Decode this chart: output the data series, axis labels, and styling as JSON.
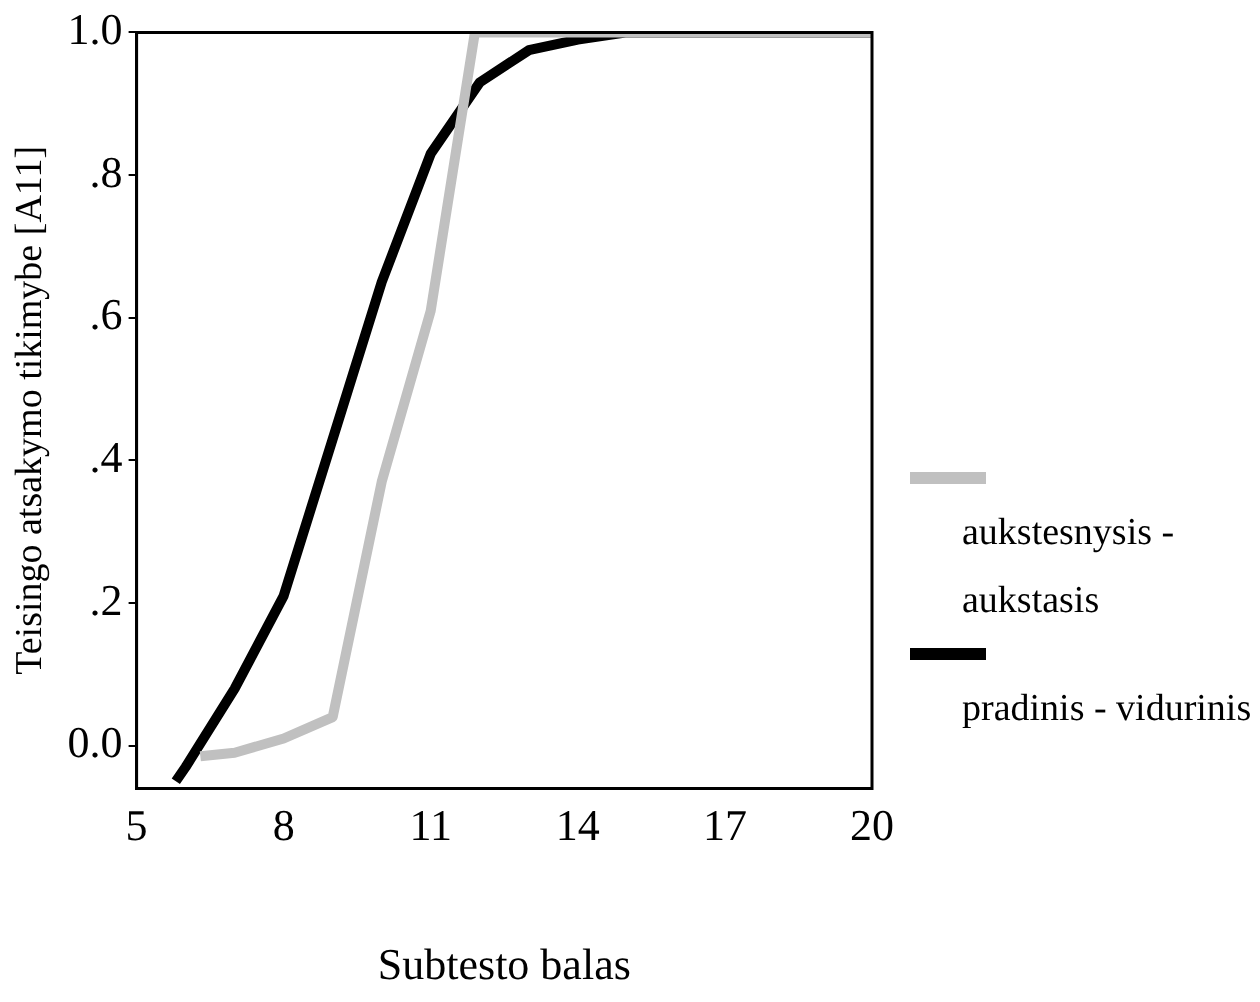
{
  "chart_data": {
    "type": "line",
    "xlabel": "Subtesto balas",
    "ylabel": "Teisingo atsakymo tikimybe [A11]",
    "xlim": [
      5,
      20
    ],
    "xticks": [
      5,
      8,
      11,
      14,
      17,
      20
    ],
    "ylim": [
      -0.06,
      1
    ],
    "yticks": [
      {
        "value": 0,
        "label": "0.0"
      },
      {
        "value": 0.2,
        "label": ".2"
      },
      {
        "value": 0.4,
        "label": ".4"
      },
      {
        "value": 0.6,
        "label": ".6"
      },
      {
        "value": 0.8,
        "label": ".8"
      },
      {
        "value": 1,
        "label": "1.0"
      }
    ],
    "grid": false,
    "legend": "right",
    "marker": "none",
    "line_style": "solid",
    "series": [
      {
        "name": "aukstesnysis - aukstasis",
        "color": "#c0c0c0",
        "x": [
          6.3,
          7,
          8,
          9,
          10,
          11,
          11.9,
          13,
          14,
          15,
          16,
          17,
          18,
          19,
          20
        ],
        "values": [
          -0.015,
          -0.01,
          0.01,
          0.04,
          0.37,
          0.61,
          1,
          1,
          1,
          1,
          1,
          1,
          1,
          1,
          1
        ]
      },
      {
        "name": "pradinis - vidurinis",
        "color": "#000000",
        "x": [
          5.8,
          6,
          7,
          8,
          9,
          10,
          11,
          12,
          13,
          14,
          15,
          16,
          17,
          18,
          19,
          20
        ],
        "values": [
          -0.05,
          -0.03,
          0.08,
          0.21,
          0.43,
          0.65,
          0.83,
          0.93,
          0.975,
          0.99,
          1,
          1,
          1,
          1,
          1,
          1
        ]
      }
    ]
  }
}
